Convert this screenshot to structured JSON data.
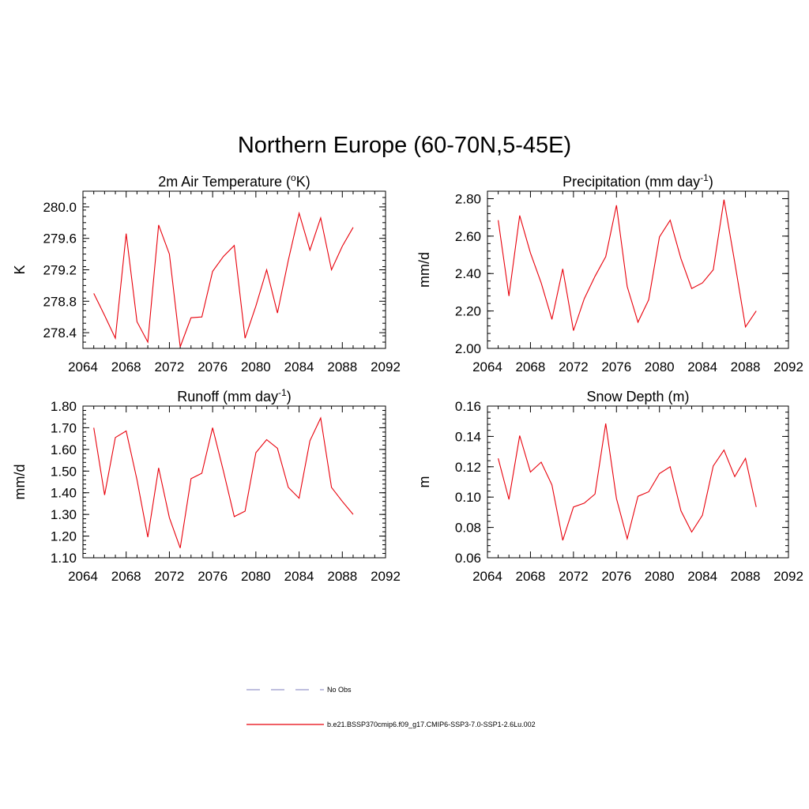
{
  "title": "Northern Europe (60-70N,5-45E)",
  "colors": {
    "series": "#e8000b",
    "obs": "#9999cc",
    "axis": "#000000"
  },
  "legend": [
    {
      "label": "No Obs",
      "style": "dashed",
      "color": "#9999cc"
    },
    {
      "label": "b.e21.BSSP370cmip6.f09_g17.CMIP6-SSP3-7.0-SSP1-2.6Lu.002",
      "style": "solid",
      "color": "#e8000b"
    }
  ],
  "chart_data": [
    {
      "type": "line",
      "title": "2m Air Temperature (°K)",
      "title_parts": [
        "2m Air Temperature (",
        "o",
        "K)"
      ],
      "ylabel": "K",
      "xlim": [
        2064,
        2092
      ],
      "ylim": [
        278.2,
        280.2
      ],
      "xticks": [
        2064,
        2068,
        2072,
        2076,
        2080,
        2084,
        2088,
        2092
      ],
      "yticks": [
        "278.4",
        "278.8",
        "279.2",
        "279.6",
        "280.0"
      ],
      "x": [
        2065,
        2066,
        2067,
        2068,
        2069,
        2070,
        2071,
        2072,
        2073,
        2074,
        2075,
        2076,
        2077,
        2078,
        2079,
        2080,
        2081,
        2082,
        2083,
        2084,
        2085,
        2086,
        2087,
        2088,
        2089
      ],
      "series": [
        {
          "values": [
            278.9,
            278.62,
            278.33,
            279.66,
            278.54,
            278.28,
            279.77,
            279.4,
            278.22,
            278.59,
            278.6,
            279.18,
            279.37,
            279.51,
            278.33,
            278.74,
            279.2,
            278.65,
            279.32,
            279.92,
            279.45,
            279.86,
            279.2,
            279.5,
            279.74
          ]
        }
      ]
    },
    {
      "type": "line",
      "title": "Precipitation (mm day-1)",
      "title_parts": [
        "Precipitation (mm day",
        "-1",
        ")"
      ],
      "ylabel": "mm/d",
      "xlim": [
        2064,
        2092
      ],
      "ylim": [
        2.0,
        2.84
      ],
      "xticks": [
        2064,
        2068,
        2072,
        2076,
        2080,
        2084,
        2088,
        2092
      ],
      "yticks": [
        "2.00",
        "2.20",
        "2.40",
        "2.60",
        "2.80"
      ],
      "x": [
        2065,
        2066,
        2067,
        2068,
        2069,
        2070,
        2071,
        2072,
        2073,
        2074,
        2075,
        2076,
        2077,
        2078,
        2079,
        2080,
        2081,
        2082,
        2083,
        2084,
        2085,
        2086,
        2087,
        2088,
        2089
      ],
      "series": [
        {
          "values": [
            2.685,
            2.28,
            2.71,
            2.51,
            2.35,
            2.155,
            2.425,
            2.095,
            2.265,
            2.385,
            2.49,
            2.765,
            2.33,
            2.14,
            2.26,
            2.595,
            2.685,
            2.48,
            2.32,
            2.35,
            2.42,
            2.795,
            2.46,
            2.115,
            2.2
          ]
        }
      ]
    },
    {
      "type": "line",
      "title": "Runoff (mm day-1)",
      "title_parts": [
        "Runoff (mm day",
        "-1",
        ")"
      ],
      "ylabel": "mm/d",
      "xlim": [
        2064,
        2092
      ],
      "ylim": [
        1.1,
        1.8
      ],
      "xticks": [
        2064,
        2068,
        2072,
        2076,
        2080,
        2084,
        2088,
        2092
      ],
      "yticks": [
        "1.10",
        "1.20",
        "1.30",
        "1.40",
        "1.50",
        "1.60",
        "1.70",
        "1.80"
      ],
      "x": [
        2065,
        2066,
        2067,
        2068,
        2069,
        2070,
        2071,
        2072,
        2073,
        2074,
        2075,
        2076,
        2077,
        2078,
        2079,
        2080,
        2081,
        2082,
        2083,
        2084,
        2085,
        2086,
        2087,
        2088,
        2089
      ],
      "series": [
        {
          "values": [
            1.7,
            1.39,
            1.655,
            1.685,
            1.46,
            1.195,
            1.515,
            1.285,
            1.145,
            1.465,
            1.49,
            1.7,
            1.5,
            1.29,
            1.315,
            1.585,
            1.645,
            1.605,
            1.425,
            1.375,
            1.64,
            1.745,
            1.425,
            1.36,
            1.3
          ]
        }
      ]
    },
    {
      "type": "line",
      "title": "Snow Depth (m)",
      "title_parts": [
        "Snow Depth (m)",
        "",
        ""
      ],
      "ylabel": "m",
      "xlim": [
        2064,
        2092
      ],
      "ylim": [
        0.06,
        0.16
      ],
      "xticks": [
        2064,
        2068,
        2072,
        2076,
        2080,
        2084,
        2088,
        2092
      ],
      "yticks": [
        "0.06",
        "0.08",
        "0.10",
        "0.12",
        "0.14",
        "0.16"
      ],
      "x": [
        2065,
        2066,
        2067,
        2068,
        2069,
        2070,
        2071,
        2072,
        2073,
        2074,
        2075,
        2076,
        2077,
        2078,
        2079,
        2080,
        2081,
        2082,
        2083,
        2084,
        2085,
        2086,
        2087,
        2088,
        2089
      ],
      "series": [
        {
          "values": [
            0.1255,
            0.0985,
            0.1405,
            0.1165,
            0.123,
            0.108,
            0.0715,
            0.0935,
            0.096,
            0.102,
            0.1485,
            0.099,
            0.0725,
            0.1005,
            0.1035,
            0.1155,
            0.12,
            0.091,
            0.077,
            0.088,
            0.1205,
            0.131,
            0.1135,
            0.1255,
            0.0935
          ]
        }
      ]
    }
  ]
}
